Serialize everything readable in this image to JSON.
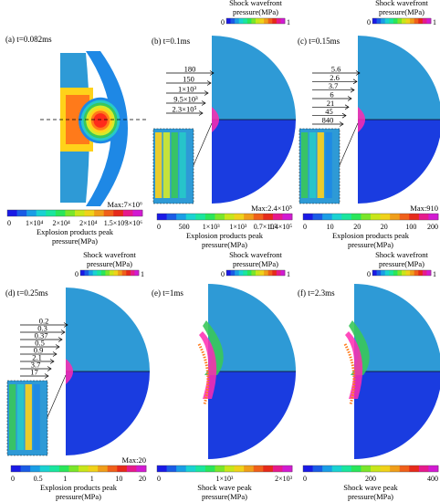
{
  "panels": [
    {
      "id": "a",
      "label": "(a) t=0.082ms",
      "legend_title": [
        "Explosion products peak",
        "pressure(MPa)"
      ],
      "max_label": "Max:7×10⁶",
      "ticks": [
        "0",
        "1×10⁴",
        "2×10⁴",
        "2×10⁴",
        "1.5×10⁶",
        "3×10⁶"
      ]
    },
    {
      "id": "b",
      "label": "(b) t=0.1ms",
      "top_legend": {
        "title": [
          "Shock wavefront",
          "pressure(MPa)"
        ],
        "min": "0",
        "max": "1"
      },
      "legend_title": [
        "Explosion products peak",
        "pressure(MPa)"
      ],
      "max_label": "Max:2.4×10⁵",
      "ticks": [
        "0",
        "500",
        "1×10³",
        "1×10³",
        "0.7×10⁵",
        "1.4×10⁵"
      ],
      "contour_labels": [
        "180",
        "150",
        "1×10³",
        "9.5×10³",
        "2.3×10⁵"
      ]
    },
    {
      "id": "c",
      "label": "(c) t=0.15ms",
      "top_legend": {
        "title": [
          "Shock wavefront",
          "pressure(MPa)"
        ],
        "min": "0",
        "max": "1"
      },
      "legend_title": [
        "Explosion products peak",
        "pressure(MPa)"
      ],
      "max_label": "Max:910",
      "ticks": [
        "0",
        "10",
        "20",
        "20",
        "100",
        "200"
      ],
      "contour_labels": [
        "5.6",
        "2.6",
        "3.7",
        "6",
        "21",
        "45",
        "840"
      ]
    },
    {
      "id": "d",
      "label": "(d) t=0.25ms",
      "top_legend": {
        "title": [
          "Shock wavefront",
          "pressure(MPa)"
        ],
        "min": "0",
        "max": "1"
      },
      "legend_title": [
        "Explosion products peak",
        "pressure(MPa)"
      ],
      "max_label": "Max:20",
      "ticks": [
        "0",
        "0.5",
        "1",
        "1",
        "10",
        "20"
      ],
      "contour_labels": [
        "0.2",
        "0.3",
        "0.37",
        "0.5",
        "0.9",
        "2.1",
        "3.7",
        "17"
      ]
    },
    {
      "id": "e",
      "label": "(e) t=1ms",
      "top_legend": {
        "title": [
          "Shock wavefront",
          "pressure(MPa)"
        ],
        "min": "0",
        "max": "1"
      },
      "legend_title": [
        "Shock wave peak",
        "pressure(MPa)"
      ],
      "ticks": [
        "0",
        "1×10³",
        "2×10³"
      ]
    },
    {
      "id": "f",
      "label": "(f) t=2.3ms",
      "top_legend": {
        "title": [
          "Shock wavefront",
          "pressure(MPa)"
        ],
        "min": "0",
        "max": "1"
      },
      "legend_title": [
        "Shock wave peak",
        "pressure(MPa)"
      ],
      "ticks": [
        "0",
        "200",
        "400"
      ]
    }
  ],
  "colors": {
    "field": "#2e9ad6",
    "field_lower": "#1a3ce0",
    "hot": [
      "#ff2a1a",
      "#ff7a1a",
      "#ffd21a",
      "#d6ea2a",
      "#3ac85a",
      "#27c9c9",
      "#1e88e5"
    ],
    "scale": [
      "#1a1ae6",
      "#1a5ce6",
      "#1a9ee6",
      "#1ad2d2",
      "#1ae69e",
      "#2ae65a",
      "#7ae62a",
      "#c8e61a",
      "#f0d21a",
      "#f09e1a",
      "#f0601a",
      "#e62a1a",
      "#e61a8c",
      "#d21ad2"
    ]
  }
}
